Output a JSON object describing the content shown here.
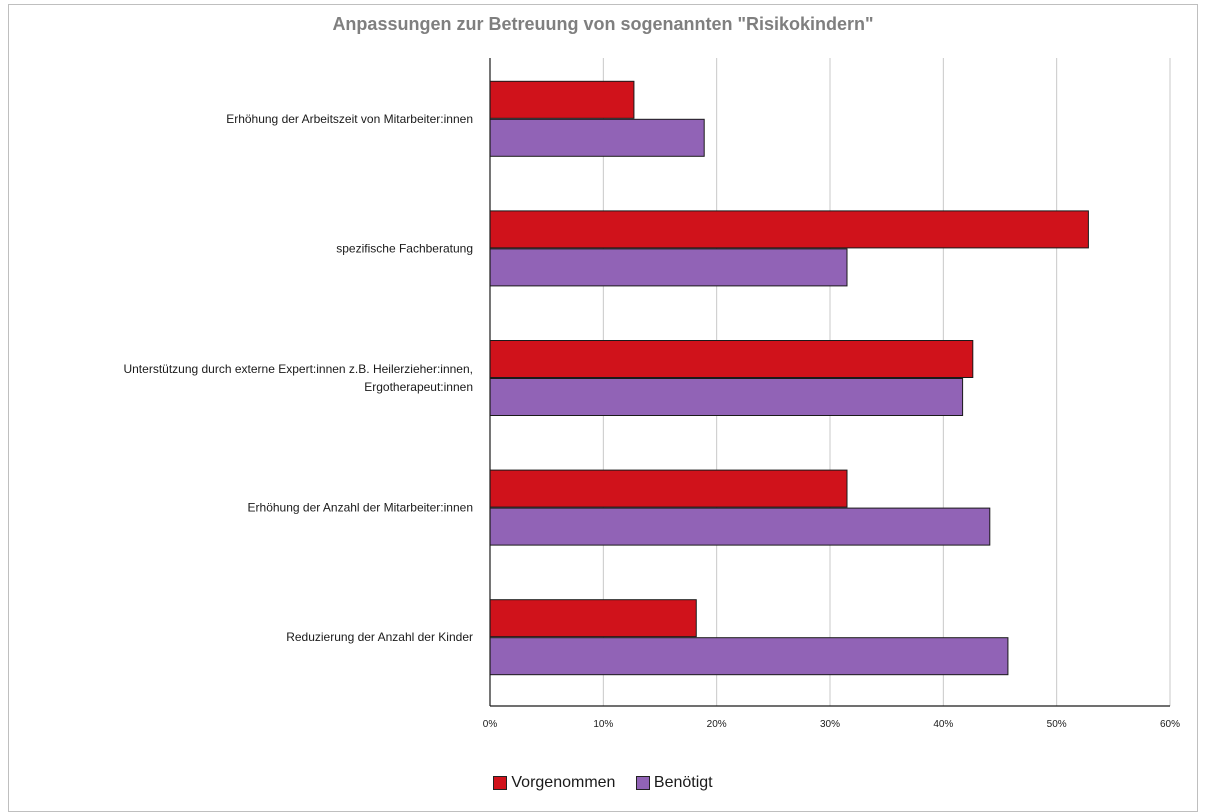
{
  "chart_data": {
    "type": "bar",
    "orientation": "horizontal",
    "title": "Anpassungen zur Betreuung von sogenannten \"Risikokindern\"",
    "xlabel": "",
    "ylabel": "",
    "xlim": [
      0,
      60
    ],
    "x_ticks": [
      "0%",
      "10%",
      "20%",
      "30%",
      "40%",
      "50%",
      "60%"
    ],
    "grid": true,
    "legend_position": "bottom",
    "categories": [
      [
        "Erhöhung der Arbeitszeit von Mitarbeiter:innen"
      ],
      [
        "spezifische Fachberatung"
      ],
      [
        "Unterstützung durch externe Expert:innen z.B. Heilerzieher:innen,",
        "Ergotherapeut:innen"
      ],
      [
        "Erhöhung der Anzahl der Mitarbeiter:innen"
      ],
      [
        "Reduzierung der Anzahl der Kinder"
      ]
    ],
    "series": [
      {
        "name": "Vorgenommen",
        "color": "#d0121b",
        "values": [
          12.7,
          52.8,
          42.6,
          31.5,
          18.2
        ]
      },
      {
        "name": "Benötigt",
        "color": "#9163b6",
        "values": [
          18.9,
          31.5,
          41.7,
          44.1,
          45.7
        ]
      }
    ]
  }
}
